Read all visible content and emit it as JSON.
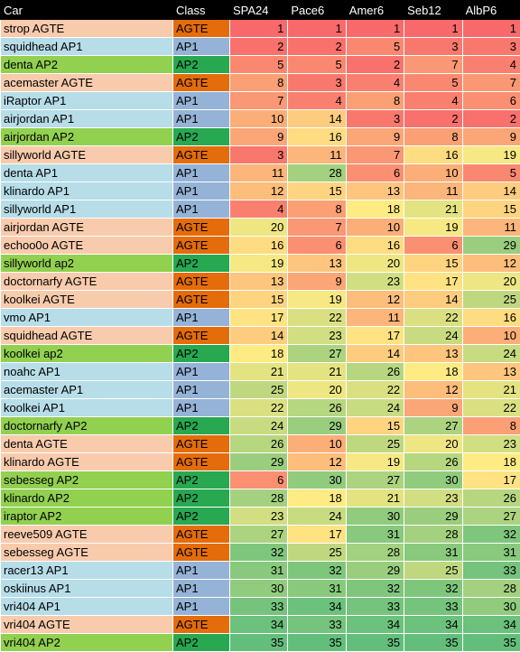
{
  "headers": [
    "Car",
    "Class",
    "SPA24",
    "Pace6",
    "Amer6",
    "Seb12",
    "AlbP6"
  ],
  "class_colors": {
    "AGTE": {
      "row": "#f8cbad",
      "cell": "#e46c0a"
    },
    "AP1": {
      "row": "#b7dde8",
      "cell": "#95b3d7"
    },
    "AP2": {
      "row": "#92d050",
      "cell": "#27a851"
    }
  },
  "rank_scale": {
    "low": "#f8696b",
    "mid": "#ffeb84",
    "high": "#63be7b",
    "max": 35
  },
  "rows": [
    {
      "car": "strop AGTE",
      "class": "AGTE",
      "values": [
        1,
        1,
        1,
        1,
        1
      ]
    },
    {
      "car": "squidhead AP1",
      "class": "AP1",
      "values": [
        2,
        2,
        5,
        3,
        3
      ]
    },
    {
      "car": "denta AP2",
      "class": "AP2",
      "values": [
        5,
        5,
        2,
        7,
        4
      ]
    },
    {
      "car": "acemaster AGTE",
      "class": "AGTE",
      "values": [
        8,
        3,
        4,
        5,
        7
      ]
    },
    {
      "car": "iRaptor AP1",
      "class": "AP1",
      "values": [
        7,
        4,
        8,
        4,
        6
      ]
    },
    {
      "car": "airjordan AP1",
      "class": "AP1",
      "values": [
        10,
        14,
        3,
        2,
        2
      ]
    },
    {
      "car": "airjordan AP2",
      "class": "AP2",
      "values": [
        9,
        16,
        9,
        8,
        9
      ]
    },
    {
      "car": "sillyworld AGTE",
      "class": "AGTE",
      "values": [
        3,
        11,
        7,
        16,
        19
      ]
    },
    {
      "car": "denta AP1",
      "class": "AP1",
      "values": [
        11,
        28,
        6,
        10,
        5
      ]
    },
    {
      "car": "klinardo AP1",
      "class": "AP1",
      "values": [
        12,
        15,
        13,
        11,
        14
      ]
    },
    {
      "car": "sillyworld AP1",
      "class": "AP1",
      "values": [
        4,
        8,
        18,
        21,
        15
      ]
    },
    {
      "car": "airjordan AGTE",
      "class": "AGTE",
      "values": [
        20,
        7,
        10,
        19,
        11
      ]
    },
    {
      "car": "echoo0o AGTE",
      "class": "AGTE",
      "values": [
        16,
        6,
        16,
        6,
        29
      ]
    },
    {
      "car": "sillyworld ap2",
      "class": "AP2",
      "values": [
        19,
        13,
        20,
        15,
        12
      ]
    },
    {
      "car": "doctornarfy AGTE",
      "class": "AGTE",
      "values": [
        13,
        9,
        23,
        17,
        20
      ]
    },
    {
      "car": "koolkei AGTE",
      "class": "AGTE",
      "values": [
        15,
        19,
        12,
        14,
        25
      ]
    },
    {
      "car": "vmo AP1",
      "class": "AP1",
      "values": [
        17,
        22,
        11,
        22,
        16
      ]
    },
    {
      "car": "squidhead AGTE",
      "class": "AGTE",
      "values": [
        14,
        23,
        17,
        24,
        10
      ]
    },
    {
      "car": "koolkei ap2",
      "class": "AP2",
      "values": [
        18,
        27,
        14,
        13,
        24
      ]
    },
    {
      "car": "noahc AP1",
      "class": "AP1",
      "values": [
        21,
        21,
        26,
        18,
        13
      ]
    },
    {
      "car": "acemaster AP1",
      "class": "AP1",
      "values": [
        25,
        20,
        22,
        12,
        21
      ]
    },
    {
      "car": "koolkei AP1",
      "class": "AP1",
      "values": [
        22,
        26,
        24,
        9,
        22
      ]
    },
    {
      "car": "doctornarfy AP2",
      "class": "AP2",
      "values": [
        24,
        29,
        15,
        27,
        8
      ]
    },
    {
      "car": "denta AGTE",
      "class": "AGTE",
      "values": [
        26,
        10,
        25,
        20,
        23
      ]
    },
    {
      "car": "klinardo AGTE",
      "class": "AGTE",
      "values": [
        29,
        12,
        19,
        26,
        18
      ]
    },
    {
      "car": "sebesseg AP2",
      "class": "AP2",
      "values": [
        6,
        30,
        27,
        30,
        17
      ]
    },
    {
      "car": "klinardo AP2",
      "class": "AP2",
      "values": [
        28,
        18,
        21,
        23,
        26
      ]
    },
    {
      "car": "iraptor AP2",
      "class": "AP2",
      "values": [
        23,
        24,
        30,
        29,
        27
      ]
    },
    {
      "car": "reeve509 AGTE",
      "class": "AGTE",
      "values": [
        27,
        17,
        31,
        28,
        32
      ]
    },
    {
      "car": "sebesseg AGTE",
      "class": "AGTE",
      "values": [
        32,
        25,
        28,
        31,
        31
      ]
    },
    {
      "car": "racer13 AP1",
      "class": "AP1",
      "values": [
        31,
        32,
        29,
        25,
        33
      ]
    },
    {
      "car": "oskiinus AP1",
      "class": "AP1",
      "values": [
        30,
        31,
        32,
        32,
        28
      ]
    },
    {
      "car": "vri404 AP1",
      "class": "AP1",
      "values": [
        33,
        34,
        33,
        33,
        30
      ]
    },
    {
      "car": "vri404 AGTE",
      "class": "AGTE",
      "values": [
        34,
        33,
        34,
        34,
        34
      ]
    },
    {
      "car": "vri404 AP2",
      "class": "AP2",
      "values": [
        35,
        35,
        35,
        35,
        35
      ]
    }
  ]
}
